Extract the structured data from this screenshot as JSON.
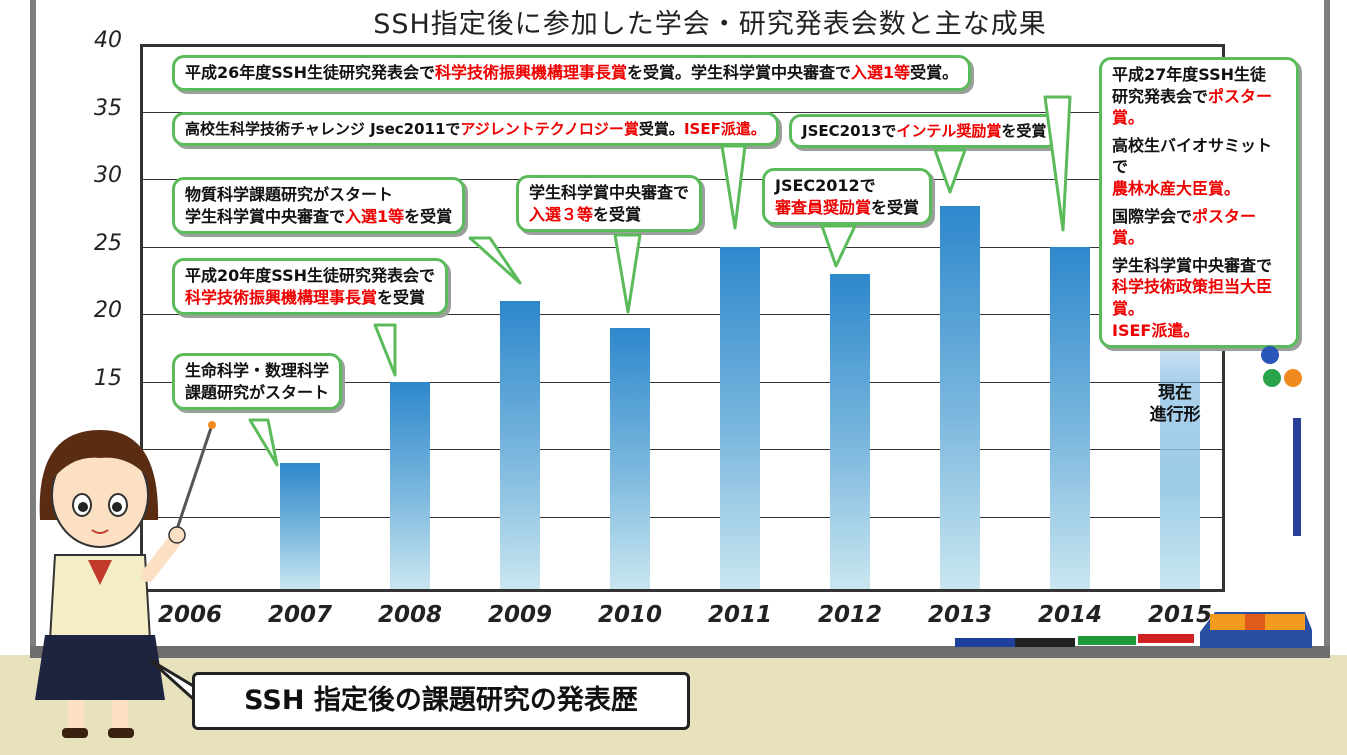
{
  "chart_data": {
    "type": "bar",
    "title": "SSH指定後に参加した学会・研究発表会数と主な成果",
    "categories": [
      "2006",
      "2007",
      "2008",
      "2009",
      "2010",
      "2011",
      "2012",
      "2013",
      "2014",
      "2015"
    ],
    "values": [
      null,
      9,
      15,
      21,
      19,
      25,
      23,
      28,
      25,
      19
    ],
    "ylim": [
      0,
      40
    ],
    "yticks": [
      "40",
      "35",
      "30",
      "25",
      "20",
      "15"
    ],
    "grid": true,
    "ongoing_category": "2015",
    "ongoing_label_lines": [
      "現在",
      "進行形"
    ]
  },
  "annotations": [
    {
      "segments": [
        {
          "t": "生命科学・数理科学",
          "red": false
        },
        {
          "t": "\n",
          "red": false
        },
        {
          "t": "課題研究がスタート",
          "red": false
        }
      ]
    },
    {
      "segments": [
        {
          "t": "平成20年度SSH生徒研究発表会で",
          "red": false
        },
        {
          "t": "\n",
          "red": false
        },
        {
          "t": "科学技術振興機構理事長賞",
          "red": true
        },
        {
          "t": "を受賞",
          "red": false
        }
      ]
    },
    {
      "segments": [
        {
          "t": "物質科学課題研究がスタート",
          "red": false
        },
        {
          "t": "\n",
          "red": false
        },
        {
          "t": "学生科学賞中央審査で",
          "red": false
        },
        {
          "t": "入選1等",
          "red": true
        },
        {
          "t": "を受賞",
          "red": false
        }
      ]
    },
    {
      "segments": [
        {
          "t": "学生科学賞中央審査で",
          "red": false
        },
        {
          "t": "\n",
          "red": false
        },
        {
          "t": "入選３等",
          "red": true
        },
        {
          "t": "を受賞",
          "red": false
        }
      ]
    },
    {
      "segments": [
        {
          "t": "高校生科学技術チャレンジ Jsec2011で",
          "red": false
        },
        {
          "t": "アジレントテクノロジー賞",
          "red": true
        },
        {
          "t": "受賞。",
          "red": false
        },
        {
          "t": "ISEF派遣。",
          "red": true
        }
      ]
    },
    {
      "segments": [
        {
          "t": "JSEC2012で",
          "red": false
        },
        {
          "t": "\n",
          "red": false
        },
        {
          "t": "審査員奨励賞",
          "red": true
        },
        {
          "t": "を受賞",
          "red": false
        }
      ]
    },
    {
      "segments": [
        {
          "t": "JSEC2013で",
          "red": false
        },
        {
          "t": "インテル奨励賞",
          "red": true
        },
        {
          "t": "を受賞",
          "red": false
        }
      ]
    },
    {
      "segments": [
        {
          "t": "平成26年度SSH生徒研究発表会で",
          "red": false
        },
        {
          "t": "科学技術振興機構理事長賞",
          "red": true
        },
        {
          "t": "を受賞。学生科学賞中央審査で",
          "red": false
        },
        {
          "t": "入選1等",
          "red": true
        },
        {
          "t": "受賞。",
          "red": false
        }
      ]
    },
    {
      "segments": [
        {
          "t": "平成27年度SSH生徒",
          "red": false
        },
        {
          "t": "\n",
          "red": false
        },
        {
          "t": "研究発表会で",
          "red": false
        },
        {
          "t": "ポスター賞。",
          "red": true
        },
        {
          "t": "\n\n",
          "red": false
        },
        {
          "t": "高校生バイオサミットで",
          "red": false
        },
        {
          "t": "\n",
          "red": false
        },
        {
          "t": "農林水産大臣賞。",
          "red": true
        },
        {
          "t": "\n\n",
          "red": false
        },
        {
          "t": "国際学会で",
          "red": false
        },
        {
          "t": "ポスター賞。",
          "red": true
        },
        {
          "t": "\n\n",
          "red": false
        },
        {
          "t": "学生科学賞中央審査で",
          "red": false
        },
        {
          "t": "\n",
          "red": false
        },
        {
          "t": "科学技術政策担当大臣賞。",
          "red": true
        },
        {
          "t": "\n",
          "red": false
        },
        {
          "t": "ISEF派遣。",
          "red": true
        }
      ]
    }
  ],
  "caption": "SSH 指定後の課題研究の発表歴",
  "colors": {
    "bar_top": "#2d88cc",
    "bar_bottom": "#c9e6f0",
    "bubble_border": "#5bbb5a",
    "highlight_text": "#ee0000",
    "floor": "#e8e2bc"
  },
  "icons": [
    "girl-teacher-illustration",
    "pointer-stick-icon",
    "magnet-icons",
    "marker-pens-icon",
    "eraser-icon"
  ]
}
